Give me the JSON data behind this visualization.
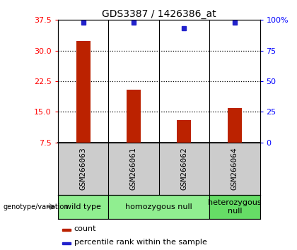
{
  "title": "GDS3387 / 1426386_at",
  "samples": [
    "GSM266063",
    "GSM266061",
    "GSM266062",
    "GSM266064"
  ],
  "bar_values": [
    32.3,
    20.5,
    13.0,
    16.0
  ],
  "percentile_values": [
    98,
    98,
    93,
    98
  ],
  "ylim_left": [
    7.5,
    37.5
  ],
  "yticks_left": [
    7.5,
    15.0,
    22.5,
    30.0,
    37.5
  ],
  "ylim_right": [
    0,
    100
  ],
  "yticks_right": [
    0,
    25,
    50,
    75,
    100
  ],
  "ytick_labels_right": [
    "0",
    "25",
    "50",
    "75",
    "100%"
  ],
  "bar_color": "#BB2200",
  "percentile_color": "#2222CC",
  "gridline_color": "black",
  "gridline_y": [
    15.0,
    22.5,
    30.0
  ],
  "groups": [
    {
      "label": "wild type",
      "start": 0,
      "end": 0,
      "color": "#90EE90"
    },
    {
      "label": "homozygous null",
      "start": 1,
      "end": 2,
      "color": "#90EE90"
    },
    {
      "label": "heterozygous\nnull",
      "start": 3,
      "end": 3,
      "color": "#66DD66"
    }
  ],
  "sample_bg_color": "#CCCCCC",
  "bar_width": 0.28,
  "title_fontsize": 10,
  "tick_fontsize": 8,
  "sample_fontsize": 8,
  "geno_fontsize": 8,
  "legend_fontsize": 8
}
